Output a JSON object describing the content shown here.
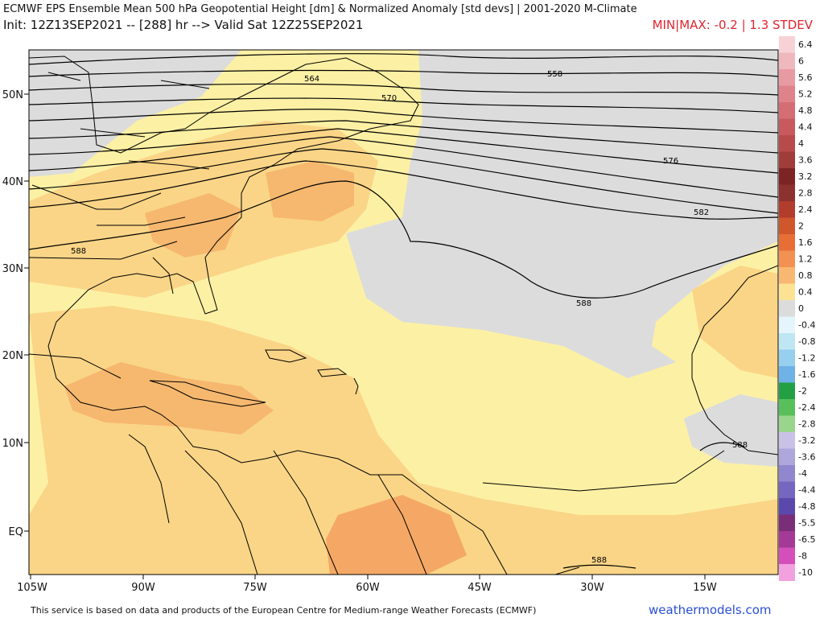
{
  "header": {
    "title": "ECMWF EPS Ensemble Mean 500 hPa Geopotential Height [dm] & Normalized Anomaly [std devs] | 2001-2020 M-Climate",
    "init_line": "Init: 12Z13SEP2021 -- [288] hr --> Valid Sat 12Z25SEP2021",
    "minmax": "MIN|MAX: -0.2 | 1.3 STDEV"
  },
  "axes": {
    "lat_labels": [
      "50N",
      "40N",
      "30N",
      "20N",
      "10N",
      "EQ"
    ],
    "lon_labels": [
      "105W",
      "90W",
      "75W",
      "60W",
      "45W",
      "30W",
      "15W"
    ]
  },
  "contour_labels": [
    "564",
    "570",
    "558",
    "576",
    "582",
    "588",
    "588",
    "588",
    "588"
  ],
  "colorbar": {
    "labels": [
      "6.4",
      "6",
      "5.6",
      "5.2",
      "4.8",
      "4.4",
      "4",
      "3.6",
      "3.2",
      "2.8",
      "2.4",
      "2",
      "1.6",
      "1.2",
      "0.8",
      "0.4",
      "0",
      "-0.4",
      "-0.8",
      "-1.2",
      "-1.6",
      "-2",
      "-2.4",
      "-2.8",
      "-3.2",
      "-3.6",
      "-4",
      "-4.4",
      "-4.8",
      "-5.5",
      "-6.5",
      "-8",
      "-10"
    ],
    "colors": [
      "#f6d2d6",
      "#efb8bd",
      "#e89aa2",
      "#e0828a",
      "#d56e74",
      "#c85a5e",
      "#b84a4c",
      "#a03c3a",
      "#7c2424",
      "#8c3030",
      "#b23d2c",
      "#d0562c",
      "#e86e36",
      "#f39152",
      "#f8b871",
      "#fce394",
      "#dcdcdc",
      "#e4f6fb",
      "#bfe6f3",
      "#97cfee",
      "#6fb2e5",
      "#23a044",
      "#58c05a",
      "#9ad58c",
      "#c9c2e6",
      "#ada7dc",
      "#9187cf",
      "#7567bf",
      "#5a48ad",
      "#7a2e77",
      "#a43a95",
      "#d54fba",
      "#f2a0de"
    ]
  },
  "footer": {
    "notice": "This service is based on data and products of the European Centre for Medium-range Weather Forecasts (ECMWF)",
    "brand": "weathermodels.com"
  }
}
